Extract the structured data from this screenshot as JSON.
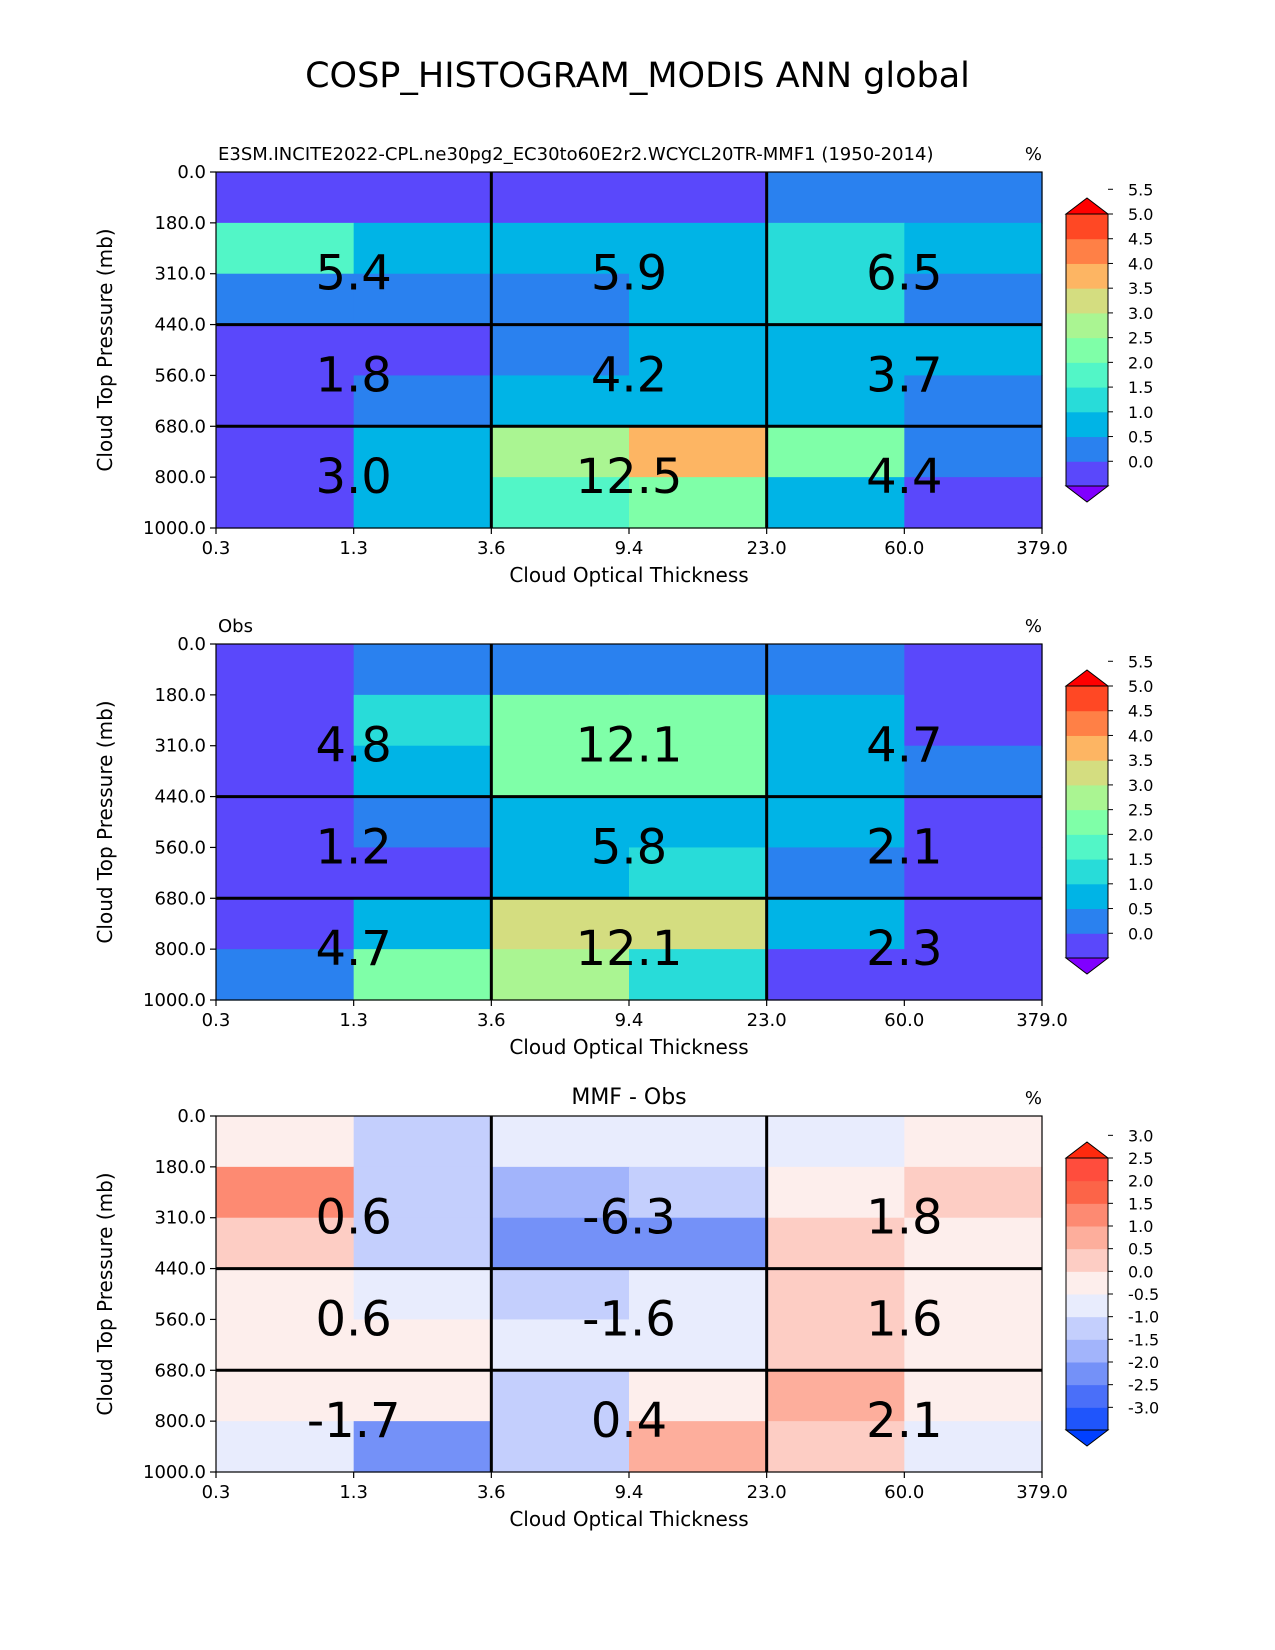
{
  "figure": {
    "title": "COSP_HISTOGRAM_MODIS ANN global"
  },
  "chart_data": [
    {
      "type": "heatmap",
      "title": "E3SM.INCITE2022-CPL.ne30pg2_EC30to60E2r2.WCYCL20TR-MMF1 (1950-2014)",
      "title_position": "left",
      "units": "%",
      "xlabel": "Cloud Optical Thickness",
      "ylabel": "Cloud Top Pressure (mb)",
      "x_ticks": [
        "0.3",
        "1.3",
        "3.6",
        "9.4",
        "23.0",
        "60.0",
        "379.0"
      ],
      "y_ticks": [
        "0.0",
        "180.0",
        "310.0",
        "440.0",
        "560.0",
        "680.0",
        "800.0",
        "1000.0"
      ],
      "cells_colors": [
        [
          "#5a48fb",
          "#5a48fb",
          "#5a48fb",
          "#5a48fb",
          "#2a81ef",
          "#2a81ef"
        ],
        [
          "#52f6c7",
          "#00b4e6",
          "#00b4e6",
          "#00b4e6",
          "#28dcd9",
          "#00b4e6"
        ],
        [
          "#2a81ef",
          "#2a81ef",
          "#2a81ef",
          "#00b4e6",
          "#28dcd9",
          "#2a81ef"
        ],
        [
          "#5a48fb",
          "#5a48fb",
          "#2a81ef",
          "#00b4e6",
          "#00b4e6",
          "#00b4e6"
        ],
        [
          "#5a48fb",
          "#2a81ef",
          "#00b4e6",
          "#00b4e6",
          "#00b4e6",
          "#2a81ef"
        ],
        [
          "#5a48fb",
          "#00b4e6",
          "#aaf592",
          "#fdb563",
          "#7fffa8",
          "#2a81ef"
        ],
        [
          "#5a48fb",
          "#00b4e6",
          "#52f6c7",
          "#7fffa8",
          "#00b4e6",
          "#5a48fb"
        ]
      ],
      "box_values": [
        [
          "5.4",
          "5.9",
          "6.5"
        ],
        [
          "1.8",
          "4.2",
          "3.7"
        ],
        [
          "3.0",
          "12.5",
          "4.4"
        ]
      ],
      "colorbar": {
        "ticks": [
          "0.0",
          "0.5",
          "1.0",
          "1.5",
          "2.0",
          "2.5",
          "3.0",
          "3.5",
          "4.0",
          "4.5",
          "5.0",
          "5.5"
        ],
        "colors": [
          "#8000ff",
          "#5a48fb",
          "#2a81ef",
          "#00b4e6",
          "#28dcd9",
          "#52f6c7",
          "#7fffa8",
          "#aaf592",
          "#d4dd80",
          "#fdb563",
          "#ff8046",
          "#ff4824",
          "#ff0000"
        ]
      }
    },
    {
      "type": "heatmap",
      "title": "Obs",
      "title_position": "left",
      "units": "%",
      "xlabel": "Cloud Optical Thickness",
      "ylabel": "Cloud Top Pressure (mb)",
      "x_ticks": [
        "0.3",
        "1.3",
        "3.6",
        "9.4",
        "23.0",
        "60.0",
        "379.0"
      ],
      "y_ticks": [
        "0.0",
        "180.0",
        "310.0",
        "440.0",
        "560.0",
        "680.0",
        "800.0",
        "1000.0"
      ],
      "cells_colors": [
        [
          "#5a48fb",
          "#2a81ef",
          "#2a81ef",
          "#2a81ef",
          "#2a81ef",
          "#5a48fb"
        ],
        [
          "#5a48fb",
          "#28dcd9",
          "#7fffa8",
          "#7fffa8",
          "#00b4e6",
          "#5a48fb"
        ],
        [
          "#5a48fb",
          "#00b4e6",
          "#7fffa8",
          "#7fffa8",
          "#00b4e6",
          "#2a81ef"
        ],
        [
          "#5a48fb",
          "#2a81ef",
          "#00b4e6",
          "#00b4e6",
          "#00b4e6",
          "#5a48fb"
        ],
        [
          "#5a48fb",
          "#5a48fb",
          "#00b4e6",
          "#28dcd9",
          "#2a81ef",
          "#5a48fb"
        ],
        [
          "#5a48fb",
          "#00b4e6",
          "#d4dd80",
          "#d4dd80",
          "#00b4e6",
          "#5a48fb"
        ],
        [
          "#2a81ef",
          "#7fffa8",
          "#aaf592",
          "#28dcd9",
          "#5a48fb",
          "#5a48fb"
        ]
      ],
      "box_values": [
        [
          "4.8",
          "12.1",
          "4.7"
        ],
        [
          "1.2",
          "5.8",
          "2.1"
        ],
        [
          "4.7",
          "12.1",
          "2.3"
        ]
      ],
      "colorbar": {
        "ticks": [
          "0.0",
          "0.5",
          "1.0",
          "1.5",
          "2.0",
          "2.5",
          "3.0",
          "3.5",
          "4.0",
          "4.5",
          "5.0",
          "5.5"
        ],
        "colors": [
          "#8000ff",
          "#5a48fb",
          "#2a81ef",
          "#00b4e6",
          "#28dcd9",
          "#52f6c7",
          "#7fffa8",
          "#aaf592",
          "#d4dd80",
          "#fdb563",
          "#ff8046",
          "#ff4824",
          "#ff0000"
        ]
      }
    },
    {
      "type": "heatmap",
      "title": "MMF - Obs",
      "title_position": "center",
      "units": "%",
      "xlabel": "Cloud Optical Thickness",
      "ylabel": "Cloud Top Pressure (mb)",
      "x_ticks": [
        "0.3",
        "1.3",
        "3.6",
        "9.4",
        "23.0",
        "60.0",
        "379.0"
      ],
      "y_ticks": [
        "0.0",
        "180.0",
        "310.0",
        "440.0",
        "560.0",
        "680.0",
        "800.0",
        "1000.0"
      ],
      "cells_colors": [
        [
          "#fdeeec",
          "#c4cffd",
          "#e8ecfd",
          "#e8ecfd",
          "#e8ecfd",
          "#fdeeec"
        ],
        [
          "#fd8a72",
          "#c4cffd",
          "#a2b4fb",
          "#c4cffd",
          "#fdeeec",
          "#fdcdc4"
        ],
        [
          "#fdcdc4",
          "#c4cffd",
          "#7491f8",
          "#7491f8",
          "#fdcdc4",
          "#fdeeec"
        ],
        [
          "#fdeeec",
          "#e8ecfd",
          "#c4cffd",
          "#e8ecfd",
          "#fdcdc4",
          "#fdeeec"
        ],
        [
          "#fdeeec",
          "#fdeeec",
          "#e8ecfd",
          "#e8ecfd",
          "#fdcdc4",
          "#fdeeec"
        ],
        [
          "#fdeeec",
          "#fdeeec",
          "#c4cffd",
          "#fdeeec",
          "#fdae9c",
          "#fdeeec"
        ],
        [
          "#e8ecfd",
          "#7491f8",
          "#c4cffd",
          "#fdae9c",
          "#fdcdc4",
          "#e8ecfd"
        ]
      ],
      "box_values": [
        [
          "0.6",
          "-6.3",
          "1.8"
        ],
        [
          "0.6",
          "-1.6",
          "1.6"
        ],
        [
          "-1.7",
          "0.4",
          "2.1"
        ]
      ],
      "colorbar": {
        "ticks": [
          "-3.0",
          "-2.5",
          "-2.0",
          "-1.5",
          "-1.0",
          "-0.5",
          "0.0",
          "0.5",
          "1.0",
          "1.5",
          "2.0",
          "2.5",
          "3.0"
        ],
        "colors": [
          "#0040ff",
          "#1f55fc",
          "#4a6ff9",
          "#7491f8",
          "#a2b4fb",
          "#c4cffd",
          "#e8ecfd",
          "#fdeeec",
          "#fdcdc4",
          "#fdae9c",
          "#fd8a72",
          "#fc6448",
          "#ff4d3d",
          "#ff2a0e"
        ]
      }
    }
  ]
}
